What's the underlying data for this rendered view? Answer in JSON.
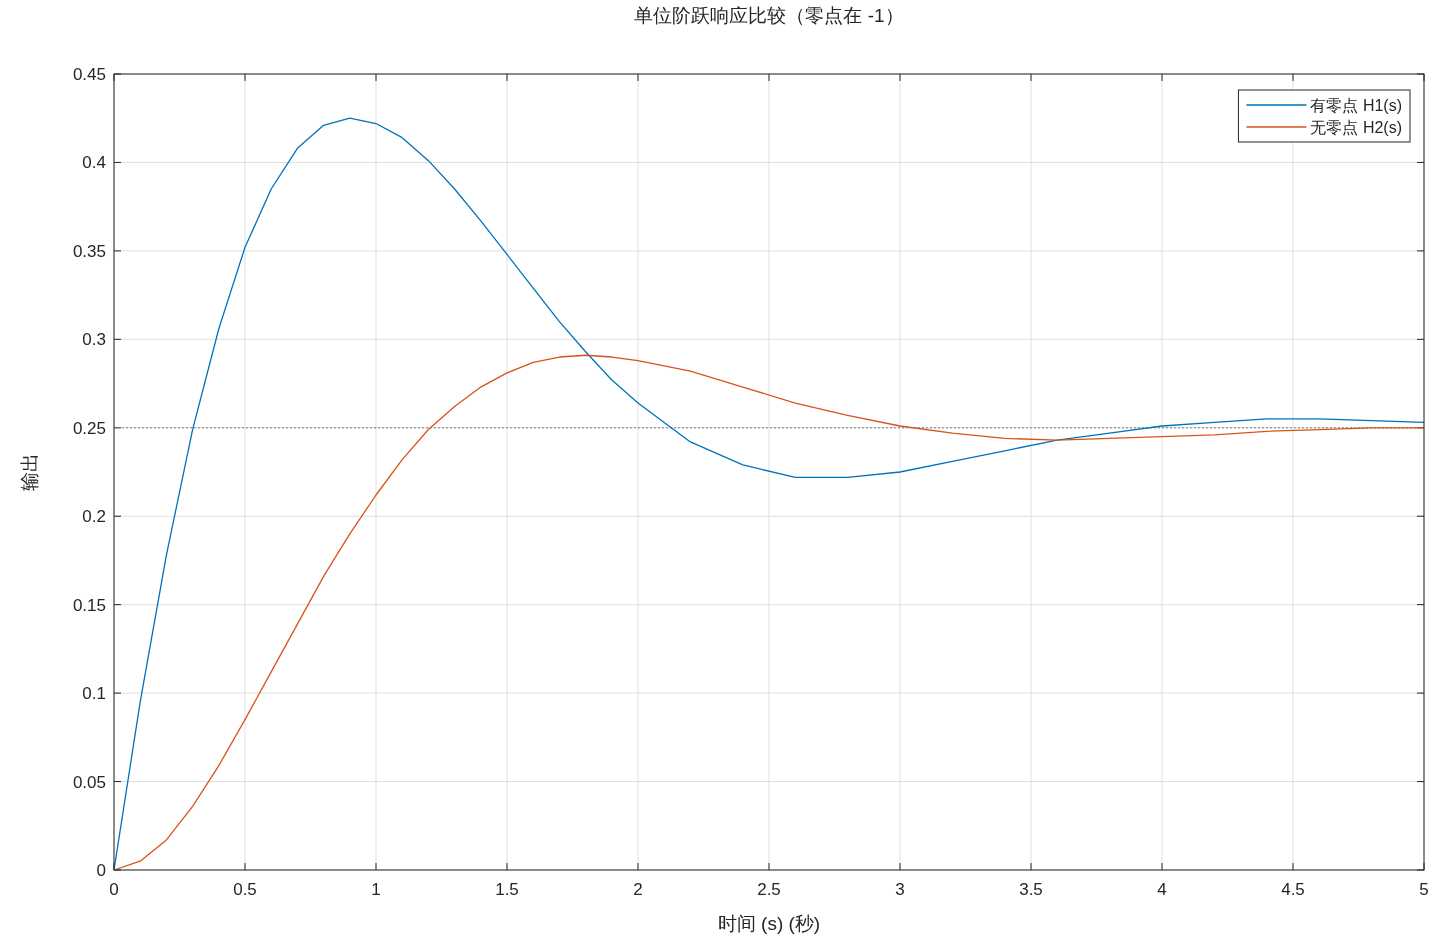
{
  "chart_data": {
    "type": "line",
    "title": "单位阶跃响应比较（零点在 -1）",
    "xlabel": "时间 (s) (秒)",
    "ylabel": "输出",
    "x": [
      0,
      0.1,
      0.2,
      0.3,
      0.4,
      0.5,
      0.6,
      0.7,
      0.8,
      0.9,
      1.0,
      1.1,
      1.2,
      1.3,
      1.4,
      1.5,
      1.6,
      1.7,
      1.8,
      1.9,
      2.0,
      2.2,
      2.4,
      2.6,
      2.8,
      3.0,
      3.2,
      3.4,
      3.6,
      3.8,
      4.0,
      4.2,
      4.4,
      4.6,
      4.8,
      5.0
    ],
    "series": [
      {
        "name": "有零点 H1(s)",
        "color": "#0072bd",
        "values": [
          0,
          0.095,
          0.178,
          0.249,
          0.306,
          0.352,
          0.385,
          0.408,
          0.421,
          0.425,
          0.422,
          0.414,
          0.401,
          0.385,
          0.367,
          0.348,
          0.329,
          0.31,
          0.293,
          0.277,
          0.264,
          0.242,
          0.229,
          0.222,
          0.222,
          0.225,
          0.231,
          0.237,
          0.243,
          0.247,
          0.251,
          0.253,
          0.255,
          0.255,
          0.254,
          0.253
        ]
      },
      {
        "name": "无零点 H2(s)",
        "color": "#d95319",
        "values": [
          0,
          0.005,
          0.017,
          0.036,
          0.059,
          0.085,
          0.112,
          0.139,
          0.166,
          0.19,
          0.212,
          0.232,
          0.249,
          0.262,
          0.273,
          0.281,
          0.287,
          0.29,
          0.291,
          0.29,
          0.288,
          0.282,
          0.273,
          0.264,
          0.257,
          0.251,
          0.247,
          0.244,
          0.243,
          0.244,
          0.245,
          0.246,
          0.248,
          0.249,
          0.25,
          0.25
        ]
      }
    ],
    "xlim": [
      0,
      5
    ],
    "xticks": [
      0,
      0.5,
      1,
      1.5,
      2,
      2.5,
      3,
      3.5,
      4,
      4.5,
      5
    ],
    "ylim": [
      0,
      0.45
    ],
    "yticks": [
      0,
      0.05,
      0.1,
      0.15,
      0.2,
      0.25,
      0.3,
      0.35,
      0.4,
      0.45
    ],
    "ref_lines": [
      {
        "axis": "y",
        "value": 0.25,
        "color": "#808080",
        "line_style": "dotted"
      }
    ],
    "grid": true,
    "legend": "top right",
    "line_style": "solid"
  }
}
